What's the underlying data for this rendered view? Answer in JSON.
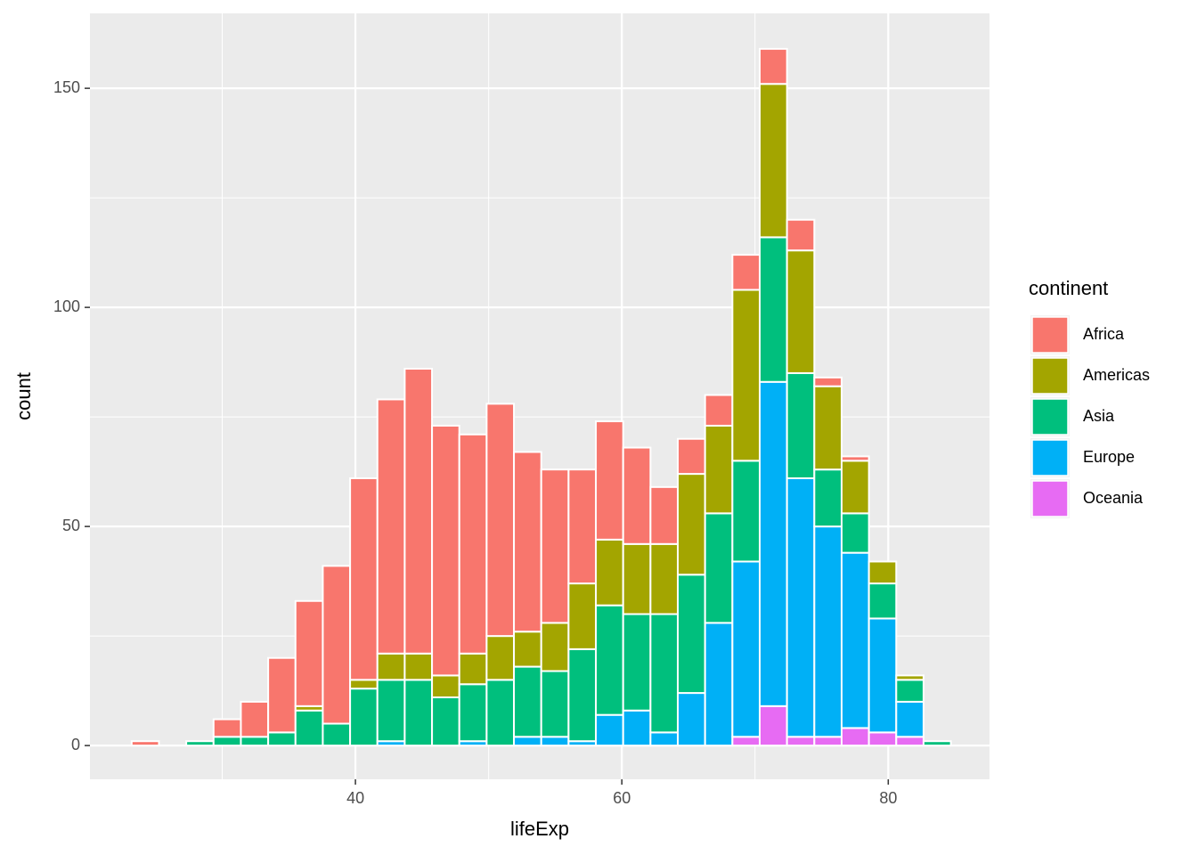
{
  "chart_data": {
    "type": "histogram",
    "stacked": true,
    "x_label": "lifeExp",
    "y_label": "count",
    "legend_title": "continent",
    "legend_position": "right",
    "bins": [
      23.2,
      25.25,
      27.3,
      29.35,
      31.4,
      33.45,
      35.5,
      37.55,
      39.6,
      41.65,
      43.7,
      45.75,
      47.8,
      49.85,
      51.9,
      53.95,
      56,
      58.05,
      60.1,
      62.15,
      64.2,
      66.25,
      68.3,
      70.35,
      72.4,
      74.45,
      76.5,
      78.55,
      80.6,
      82.65,
      84.7
    ],
    "series": [
      {
        "name": "Africa",
        "color": "#F8766D",
        "values": [
          1,
          0,
          0,
          4,
          8,
          17,
          24,
          36,
          46,
          58,
          65,
          57,
          50,
          53,
          41,
          35,
          26,
          27,
          22,
          13,
          8,
          7,
          8,
          8,
          7,
          2,
          1,
          0,
          0,
          0
        ]
      },
      {
        "name": "Americas",
        "color": "#A3A500",
        "values": [
          0,
          0,
          0,
          0,
          0,
          0,
          1,
          0,
          2,
          6,
          6,
          5,
          7,
          10,
          8,
          11,
          15,
          15,
          16,
          16,
          23,
          20,
          39,
          35,
          28,
          19,
          12,
          5,
          1,
          0
        ]
      },
      {
        "name": "Asia",
        "color": "#00BF7D",
        "values": [
          0,
          0,
          1,
          2,
          2,
          3,
          8,
          5,
          13,
          14,
          15,
          11,
          13,
          15,
          16,
          15,
          21,
          25,
          22,
          27,
          27,
          25,
          23,
          33,
          24,
          13,
          9,
          8,
          5,
          1
        ]
      },
      {
        "name": "Europe",
        "color": "#00B0F6",
        "values": [
          0,
          0,
          0,
          0,
          0,
          0,
          0,
          0,
          0,
          1,
          0,
          0,
          1,
          0,
          2,
          2,
          1,
          7,
          8,
          3,
          12,
          28,
          40,
          74,
          59,
          48,
          40,
          26,
          8,
          0
        ]
      },
      {
        "name": "Oceania",
        "color": "#E76BF3",
        "values": [
          0,
          0,
          0,
          0,
          0,
          0,
          0,
          0,
          0,
          0,
          0,
          0,
          0,
          0,
          0,
          0,
          0,
          0,
          0,
          0,
          0,
          0,
          2,
          9,
          2,
          2,
          4,
          3,
          2,
          0
        ]
      }
    ],
    "xlim": [
      20.07,
      87.6
    ],
    "ylim": [
      -7.7,
      167.1
    ],
    "xticks": [
      40,
      60,
      80
    ],
    "yticks": [
      0,
      50,
      100,
      150
    ],
    "x_minor_ticks": [
      30,
      50,
      70
    ],
    "y_minor_ticks": [
      25,
      75,
      125
    ],
    "grid": true,
    "panel_color": "#EBEBEB",
    "bar_outline": "#FFFFFF"
  }
}
